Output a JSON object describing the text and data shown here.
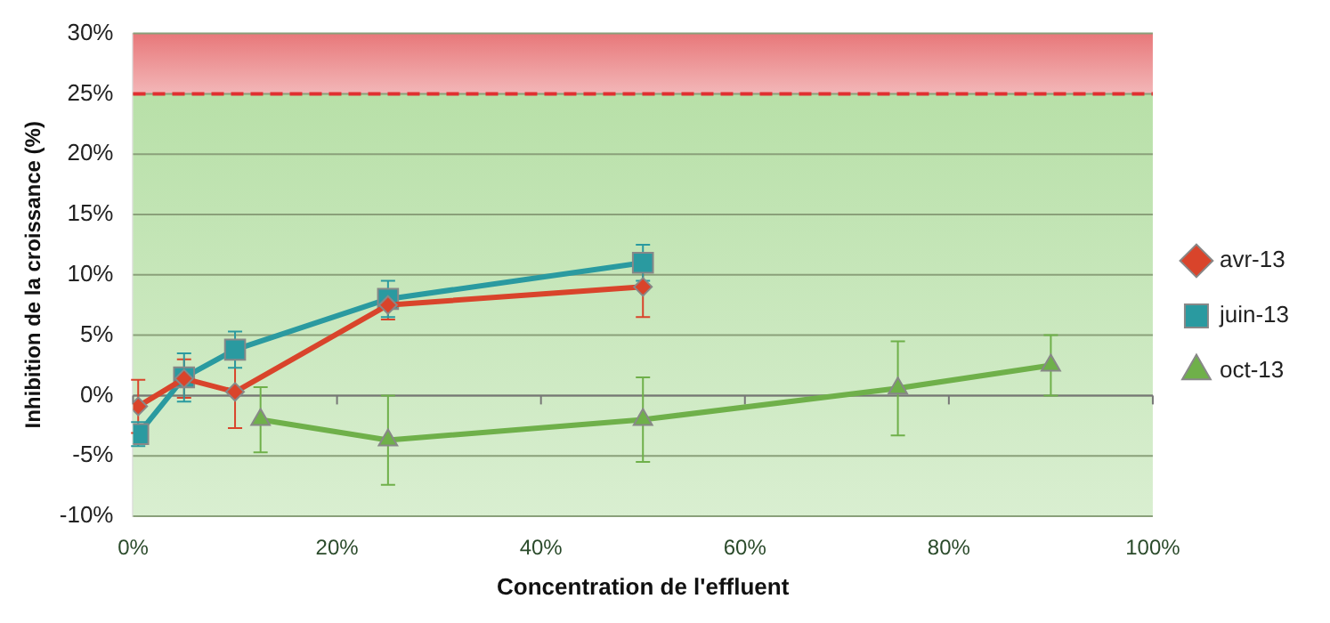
{
  "chart_data": {
    "type": "line",
    "xlabel": "Concentration de l'effluent",
    "ylabel": "Inhibition de la croissance (%)",
    "xlim": [
      0,
      100
    ],
    "xticks": [
      {
        "value": 0,
        "label": "0%"
      },
      {
        "value": 20,
        "label": "20%"
      },
      {
        "value": 40,
        "label": "40%"
      },
      {
        "value": 60,
        "label": "60%"
      },
      {
        "value": 80,
        "label": "80%"
      },
      {
        "value": 100,
        "label": "100%"
      }
    ],
    "ylim": [
      -10,
      30
    ],
    "yticks": [
      {
        "value": -10,
        "label": "-10%"
      },
      {
        "value": -5,
        "label": "-5%"
      },
      {
        "value": 0,
        "label": "0%"
      },
      {
        "value": 5,
        "label": "5%"
      },
      {
        "value": 10,
        "label": "10%"
      },
      {
        "value": 15,
        "label": "15%"
      },
      {
        "value": 20,
        "label": "20%"
      },
      {
        "value": 25,
        "label": "25%"
      },
      {
        "value": 30,
        "label": "30%"
      }
    ],
    "grid": "y",
    "legend": "right",
    "series": [
      {
        "name": "avr-13",
        "color": "#d9442b",
        "marker": "diamond",
        "x": [
          0.5,
          5,
          10,
          25,
          50
        ],
        "values": [
          -0.9,
          1.4,
          0.3,
          7.5,
          9.0
        ],
        "errors": [
          2.2,
          1.6,
          3,
          1.2,
          2.5
        ]
      },
      {
        "name": "juin-13",
        "color": "#2a9aa0",
        "marker": "square",
        "x": [
          0.5,
          5,
          10,
          25,
          50
        ],
        "values": [
          -3.2,
          1.5,
          3.8,
          8.0,
          11.0
        ],
        "errors": [
          1,
          2,
          1.5,
          1.5,
          1.5
        ]
      },
      {
        "name": "oct-13",
        "color": "#6fb04a",
        "marker": "triangle",
        "x": [
          12.5,
          25,
          50,
          75,
          90
        ],
        "values": [
          -2.0,
          -3.7,
          -2.0,
          0.6,
          2.5
        ],
        "errors": [
          2.7,
          3.7,
          3.5,
          3.9,
          2.5
        ]
      }
    ],
    "ref_lines": [
      {
        "axis": "y",
        "value": 25,
        "color": "#e03030",
        "line_style": "dashed"
      }
    ],
    "bands": [
      {
        "axis": "y",
        "from": 25,
        "to": 30,
        "color": "#e8787a"
      },
      {
        "axis": "y",
        "from": -10,
        "to": 25,
        "color": "#b8e0a8"
      }
    ]
  }
}
